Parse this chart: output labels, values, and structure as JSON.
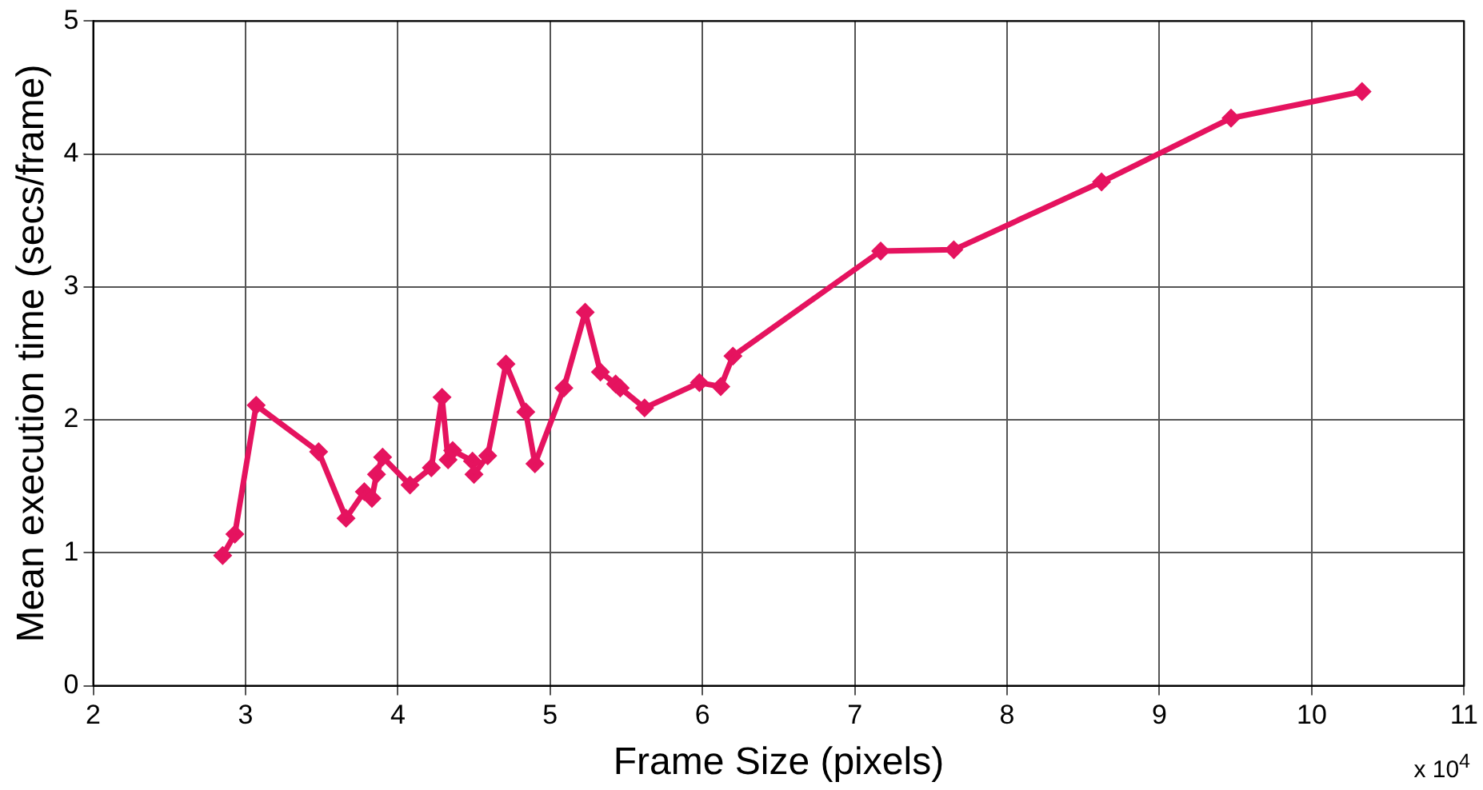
{
  "chart_data": {
    "type": "line",
    "xlabel": "Frame Size (pixels)",
    "ylabel": "Mean execution time (secs/frame)",
    "annotations": [
      "x 10$^{4}$"
    ],
    "x": [
      2.85,
      2.93,
      3.07,
      3.48,
      3.66,
      3.78,
      3.83,
      3.86,
      3.9,
      4.08,
      4.22,
      4.29,
      4.33,
      4.36,
      4.49,
      4.5,
      4.59,
      4.71,
      4.84,
      4.9,
      5.09,
      5.23,
      5.33,
      5.43,
      5.46,
      5.62,
      5.98,
      6.12,
      6.2,
      7.17,
      7.65,
      8.62,
      9.47,
      10.33
    ],
    "series": [
      {
        "color": "#e5135f",
        "values": [
          0.98,
          1.14,
          2.11,
          1.76,
          1.26,
          1.46,
          1.41,
          1.59,
          1.72,
          1.51,
          1.64,
          2.17,
          1.7,
          1.77,
          1.69,
          1.59,
          1.73,
          2.42,
          2.06,
          1.67,
          2.24,
          2.81,
          2.36,
          2.27,
          2.24,
          2.09,
          2.28,
          2.25,
          2.48,
          3.27,
          3.28,
          3.79,
          4.27,
          4.47
        ]
      }
    ],
    "xlim": [
      2,
      11
    ],
    "xticks": [
      2,
      3,
      4,
      5,
      6,
      7,
      8,
      9,
      10,
      11
    ],
    "ylim": [
      0,
      5
    ],
    "yticks": [
      0,
      1,
      2,
      3,
      4,
      5
    ],
    "grid": true,
    "legend": false,
    "marker": "diamond",
    "line_style": "solid"
  }
}
